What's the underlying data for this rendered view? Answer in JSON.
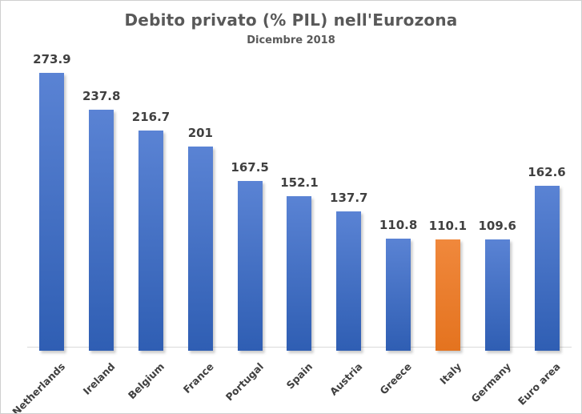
{
  "title": "Debito privato (% PIL) nell'Eurozona",
  "subtitle": "Dicembre 2018",
  "chart_data": {
    "type": "bar",
    "title": "Debito privato (% PIL) nell'Eurozona",
    "subtitle": "Dicembre 2018",
    "categories": [
      "Netherlands",
      "Ireland",
      "Belgium",
      "France",
      "Portugal",
      "Spain",
      "Austria",
      "Greece",
      "Italy",
      "Germany",
      "Euro area"
    ],
    "values": [
      273.9,
      237.8,
      216.7,
      201,
      167.5,
      152.1,
      137.7,
      110.8,
      110.1,
      109.6,
      162.6
    ],
    "data_labels": [
      "273.9",
      "237.8",
      "216.7",
      "201",
      "167.5",
      "152.1",
      "137.7",
      "110.8",
      "110.1",
      "109.6",
      "162.6"
    ],
    "highlight_category": "Italy",
    "xlabel": "",
    "ylabel": "",
    "ylim": [
      0,
      290
    ],
    "grid": false,
    "legend": "none",
    "data_labels_position": "above-bar",
    "x_tick_rotation_deg": 45,
    "colors": {
      "bar_gradient_top": "#5a83d4",
      "bar_gradient_bottom": "#2f5eb3",
      "bar_base": "#4472C4",
      "highlight_gradient_top": "#f0883c",
      "highlight_gradient_bottom": "#e4731f",
      "highlight_base": "#ED7D31",
      "axis_line": "#d9d9d9",
      "label_text": "#404040",
      "title_text": "#595959"
    }
  }
}
